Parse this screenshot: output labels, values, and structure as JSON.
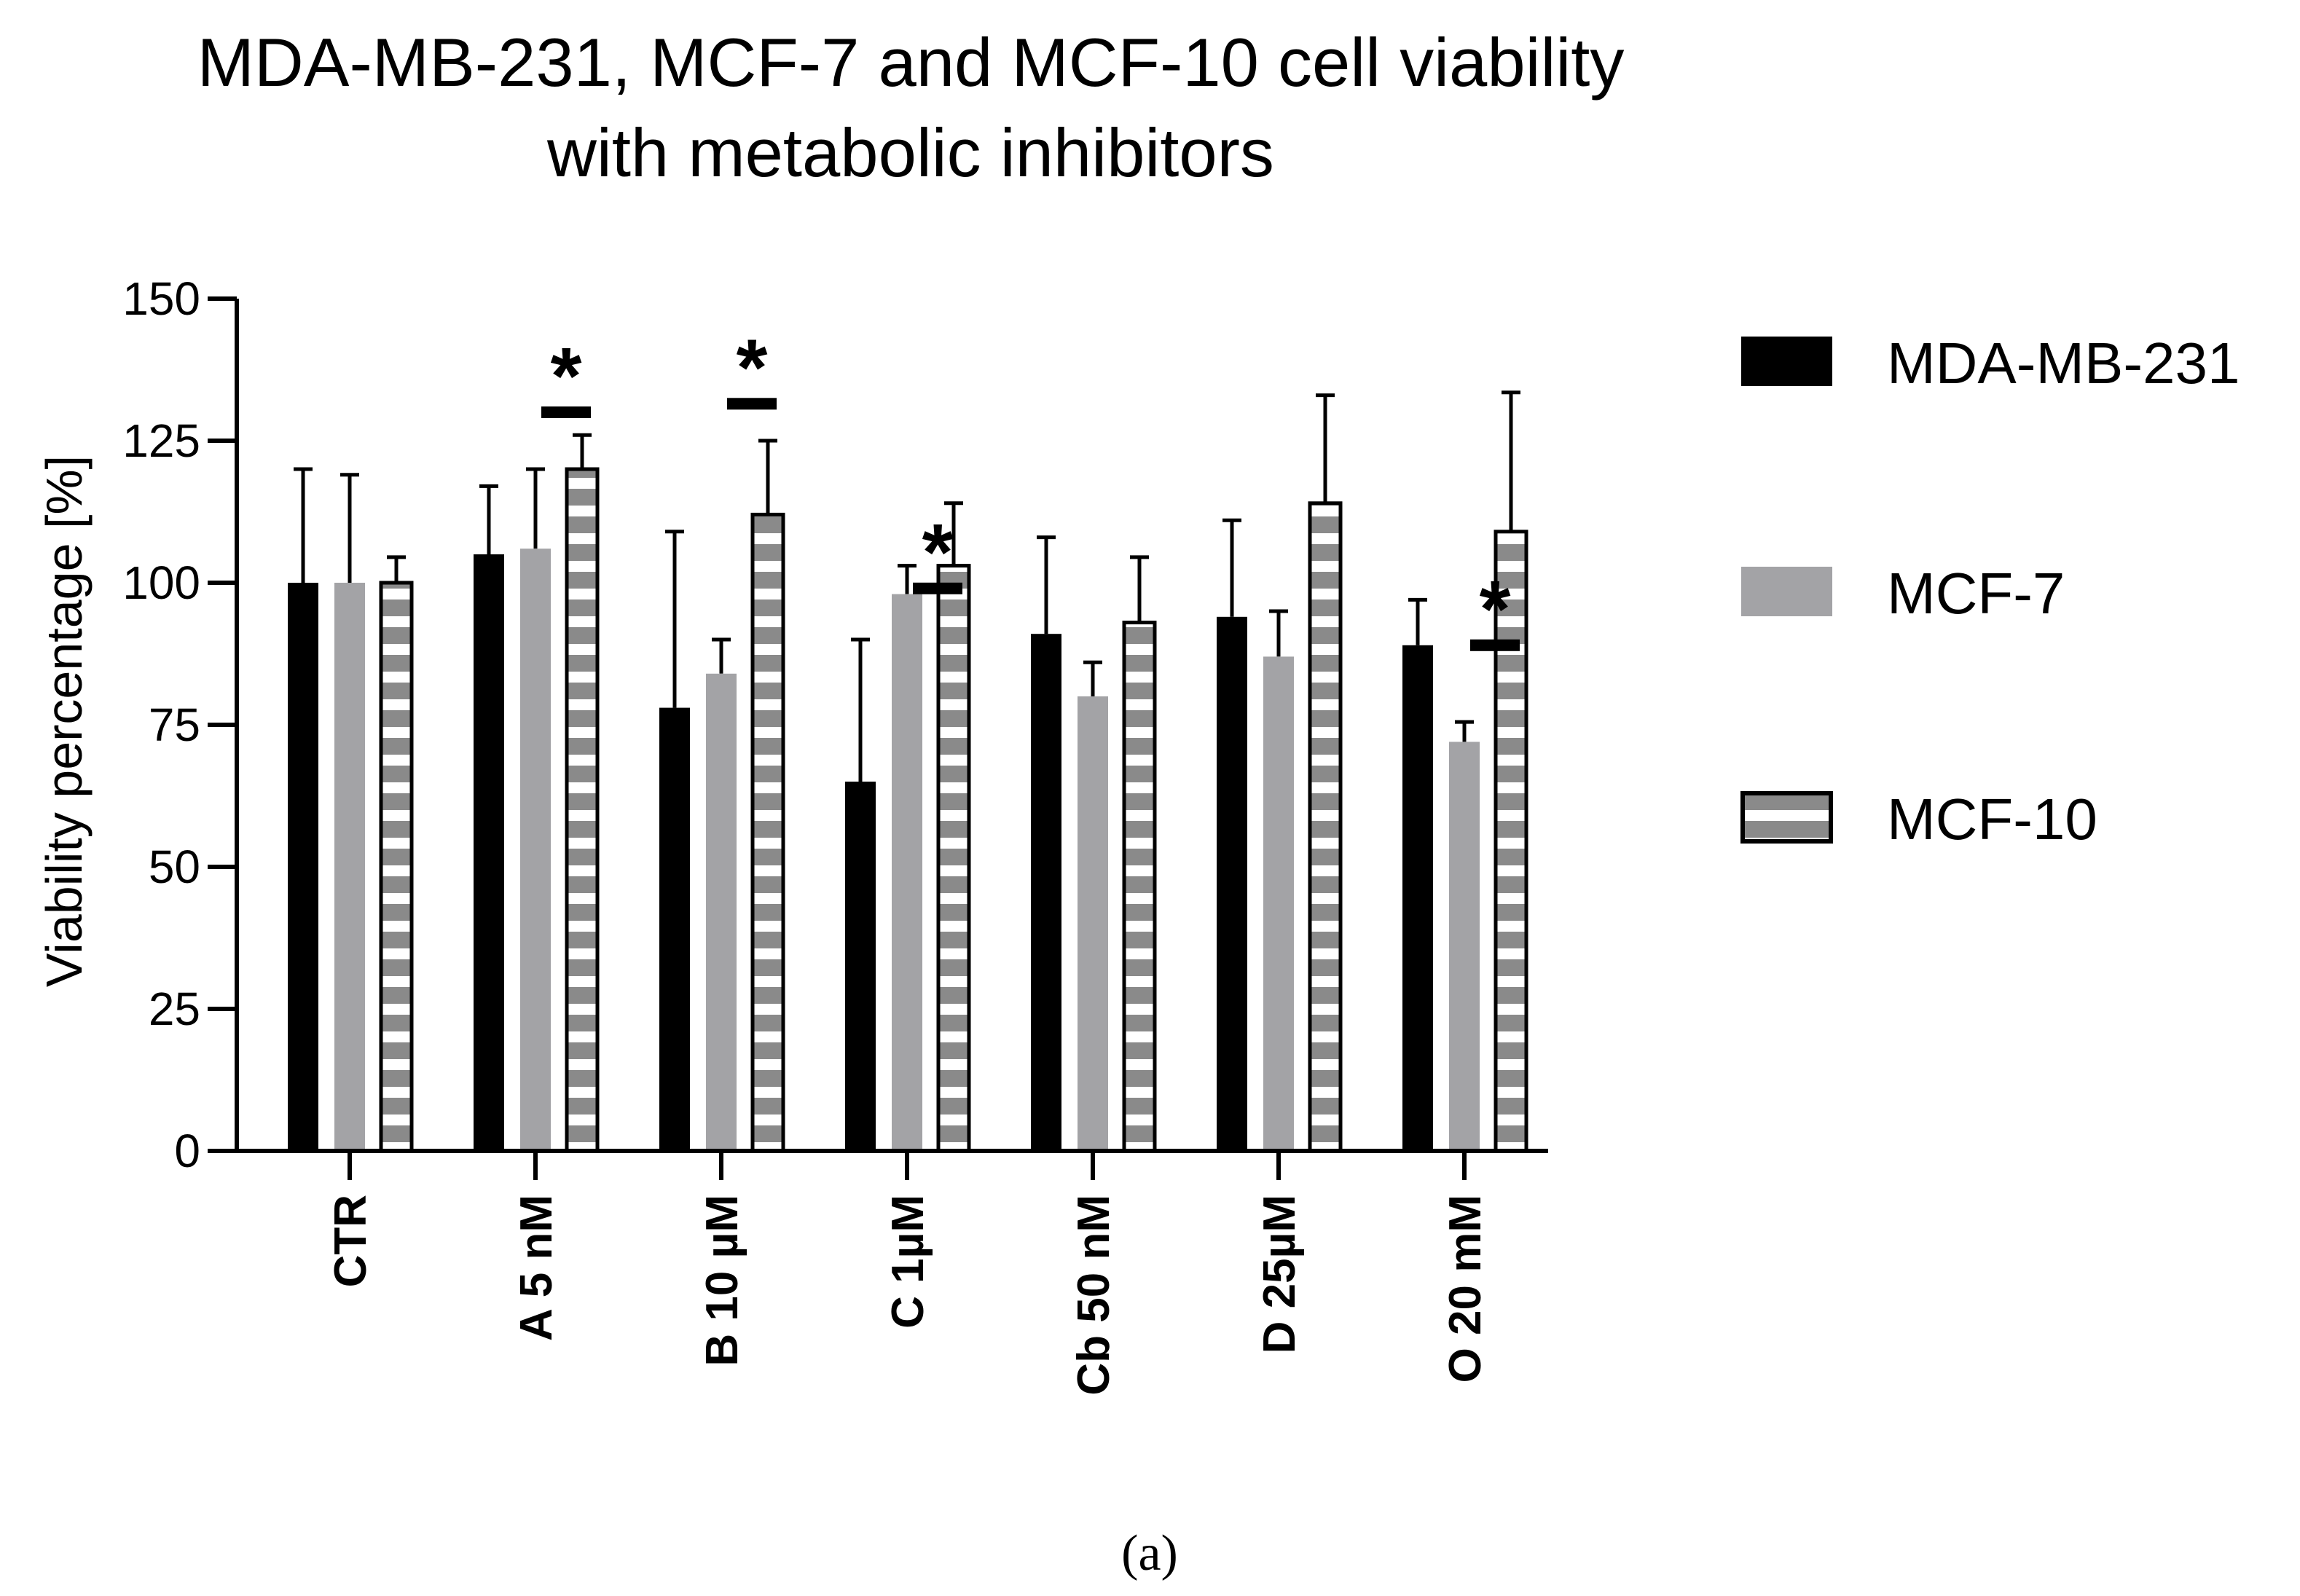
{
  "chart_data": {
    "type": "bar",
    "title_line1": "MDA-MB-231, MCF-7 and MCF-10 cell viability",
    "title_line2": "with metabolic inhibitors",
    "xlabel": "",
    "ylabel": "Viability percentage [%]",
    "ylim": [
      0,
      150
    ],
    "yticks": [
      "0",
      "25",
      "50",
      "75",
      "100",
      "125",
      "150"
    ],
    "categories": [
      "CTR",
      "A 5 nM",
      "B 10 µM",
      "C 1µM",
      "Cb 50 nM",
      "D 25µM",
      "O 20 mM"
    ],
    "series": [
      {
        "name": "MDA-MB-231",
        "color": "#000000",
        "pattern": "solid",
        "values": [
          100,
          105,
          78,
          65,
          91,
          94,
          89
        ],
        "errors": [
          20,
          12,
          31,
          25,
          17,
          17,
          8
        ]
      },
      {
        "name": "MCF-7",
        "color": "#a3a3a6",
        "pattern": "solid",
        "values": [
          100,
          106,
          84,
          98,
          80,
          87,
          72
        ],
        "errors": [
          19,
          14,
          6,
          5,
          6,
          8,
          3.5
        ]
      },
      {
        "name": "MCF-10",
        "color": "#8a8a8a",
        "pattern": "striped",
        "values": [
          100,
          120,
          112,
          103,
          93,
          114,
          109
        ],
        "errors": [
          4.5,
          6,
          13,
          11,
          11.5,
          19,
          24.5
        ]
      }
    ],
    "significance": [
      {
        "category": "A 5 nM",
        "marker": "*",
        "line_level": 130
      },
      {
        "category": "B 10 µM",
        "marker": "*",
        "line_level": 131.5
      },
      {
        "category": "C 1µM",
        "marker": "*",
        "line_level": 99
      },
      {
        "category": "O 20 mM",
        "marker": "*",
        "line_level": 89
      }
    ],
    "legend_position": "right"
  },
  "caption": "(a)"
}
